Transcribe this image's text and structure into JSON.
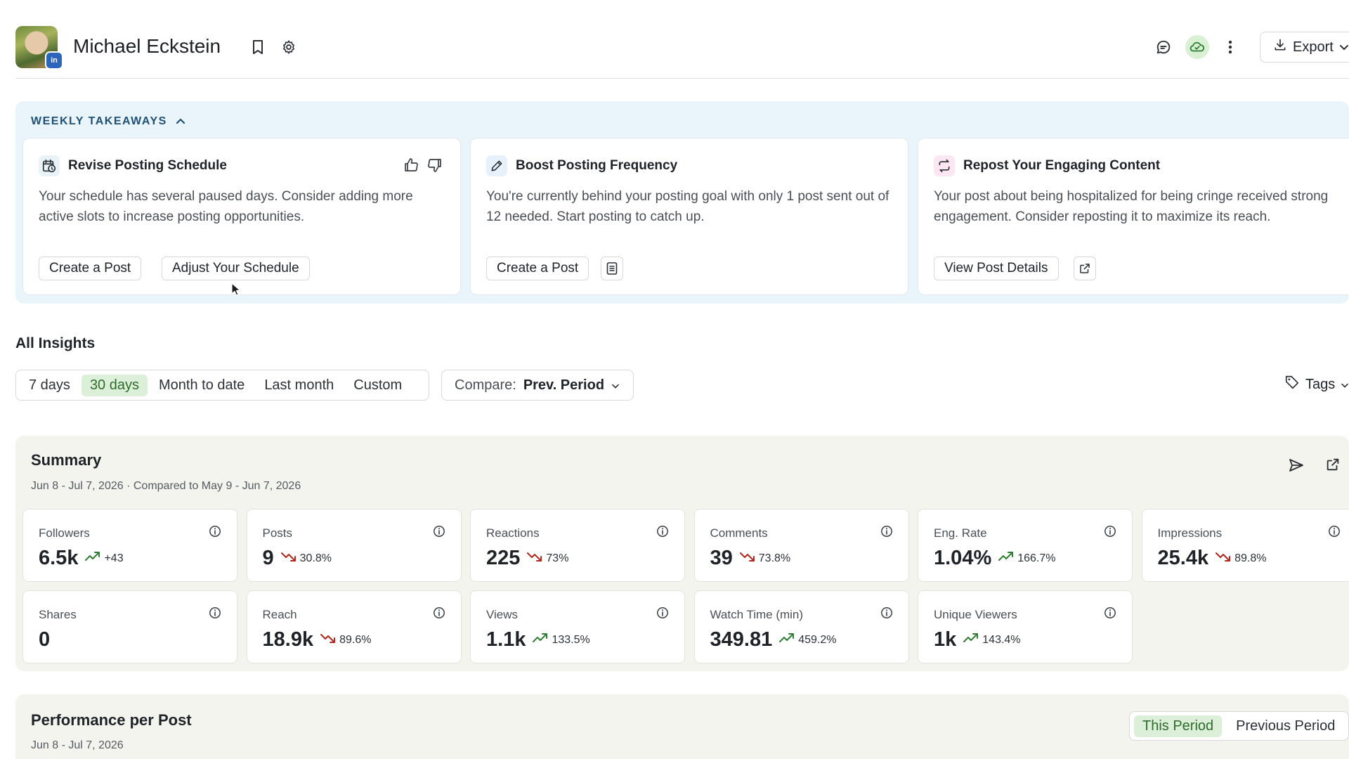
{
  "header": {
    "profile_name": "Michael Eckstein",
    "avatar_badge": "in",
    "export_label": "Export",
    "icons": [
      "bookmark-icon",
      "gear-icon",
      "chat-icon",
      "cloud-sync-icon",
      "more-vertical-icon",
      "download-icon",
      "chevron-down-icon"
    ]
  },
  "takeaways": {
    "title": "WEEKLY TAKEAWAYS",
    "cards": [
      {
        "title": "Revise Posting Schedule",
        "icon": "calendar-clock-icon",
        "icon_bg": "#e8f3f8",
        "body": "Your schedule has several paused days. Consider adding more active slots to increase posting opportunities.",
        "buttons": [
          "Create a Post",
          "Adjust Your Schedule"
        ]
      },
      {
        "title": "Boost Posting Frequency",
        "icon": "pencil-icon",
        "icon_bg": "#e6f1fb",
        "body": "You're currently behind your posting goal with only 1 post sent out of 12 needed. Start posting to catch up.",
        "buttons": [
          "Create a Post"
        ]
      },
      {
        "title": "Repost Your Engaging Content",
        "icon": "repost-icon",
        "icon_bg": "#fbe6f2",
        "body": "Your post about being hospitalized for being cringe received strong engagement. Consider reposting it to maximize its reach.",
        "buttons": [
          "View Post Details"
        ]
      }
    ]
  },
  "insights": {
    "title": "All Insights",
    "ranges": [
      "7 days",
      "30 days",
      "Month to date",
      "Last month",
      "Custom"
    ],
    "active_range": "30 days",
    "compare_label": "Compare:",
    "compare_value": "Prev. Period",
    "tags_label": "Tags"
  },
  "summary": {
    "title": "Summary",
    "subtitle": "Jun 8 - Jul 7, 2026 · Compared to May 9 - Jun 7, 2026",
    "metrics": [
      {
        "label": "Followers",
        "value": "6.5k",
        "change": "+43",
        "trend": "up"
      },
      {
        "label": "Posts",
        "value": "9",
        "change": "30.8%",
        "trend": "down"
      },
      {
        "label": "Reactions",
        "value": "225",
        "change": "73%",
        "trend": "down"
      },
      {
        "label": "Comments",
        "value": "39",
        "change": "73.8%",
        "trend": "down"
      },
      {
        "label": "Eng. Rate",
        "value": "1.04%",
        "change": "166.7%",
        "trend": "up"
      },
      {
        "label": "Impressions",
        "value": "25.4k",
        "change": "89.8%",
        "trend": "down"
      },
      {
        "label": "Shares",
        "value": "0",
        "change": "",
        "trend": "none"
      },
      {
        "label": "Reach",
        "value": "18.9k",
        "change": "89.6%",
        "trend": "down"
      },
      {
        "label": "Views",
        "value": "1.1k",
        "change": "133.5%",
        "trend": "up"
      },
      {
        "label": "Watch Time (min)",
        "value": "349.81",
        "change": "459.2%",
        "trend": "up"
      },
      {
        "label": "Unique Viewers",
        "value": "1k",
        "change": "143.4%",
        "trend": "up"
      }
    ]
  },
  "performance": {
    "title": "Performance per Post",
    "subtitle": "Jun 8 - Jul 7, 2026",
    "periods": [
      "This Period",
      "Previous Period"
    ],
    "active_period": "This Period"
  },
  "colors": {
    "trend_up": "#2e7d32",
    "trend_down": "#b3261e",
    "active_green_bg": "#dcefd9",
    "takeaways_bg": "#eaf5fb",
    "summary_bg": "#f4f4ef"
  }
}
